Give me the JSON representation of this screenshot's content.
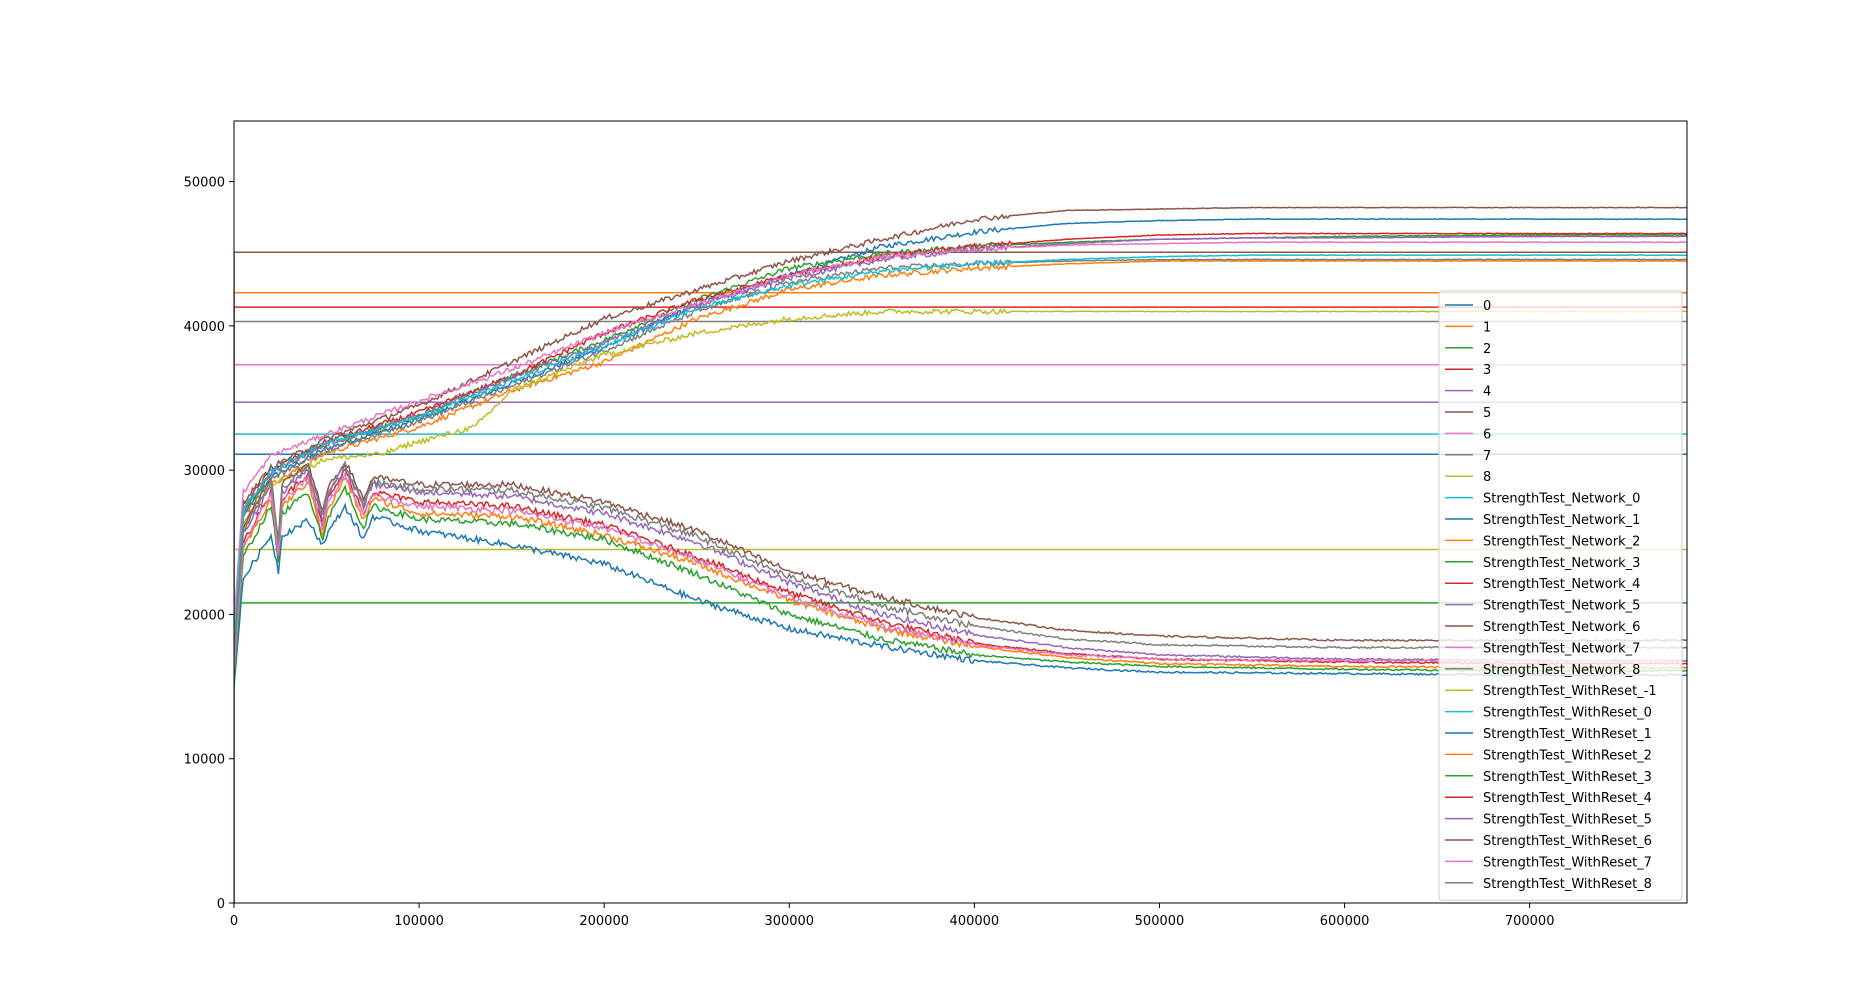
{
  "chart_data": {
    "type": "line",
    "title": "",
    "xlabel": "",
    "ylabel": "",
    "xlim": [
      0,
      785000
    ],
    "ylim": [
      0,
      54200
    ],
    "grid": false,
    "legend_position": "right",
    "x_ticks": [
      0,
      100000,
      200000,
      300000,
      400000,
      500000,
      600000,
      700000
    ],
    "x_tick_labels": [
      "0",
      "100000",
      "200000",
      "300000",
      "400000",
      "500000",
      "600000",
      "700000"
    ],
    "y_ticks": [
      0,
      10000,
      20000,
      30000,
      40000,
      50000
    ],
    "y_tick_labels": [
      "0",
      "10000",
      "20000",
      "30000",
      "40000",
      "50000"
    ],
    "series": [
      {
        "name": "0",
        "color": "#1f77b4",
        "style": "constant",
        "value": 31100
      },
      {
        "name": "1",
        "color": "#ff7f0e",
        "style": "constant",
        "value": 42300
      },
      {
        "name": "2",
        "color": "#2ca02c",
        "style": "constant",
        "value": 20800
      },
      {
        "name": "3",
        "color": "#d62728",
        "style": "constant",
        "value": 41300
      },
      {
        "name": "4",
        "color": "#9467bd",
        "style": "constant",
        "value": 34700
      },
      {
        "name": "5",
        "color": "#8c564b",
        "style": "constant",
        "value": 45100
      },
      {
        "name": "6",
        "color": "#e377c2",
        "style": "constant",
        "value": 37300
      },
      {
        "name": "7",
        "color": "#7f7f7f",
        "style": "constant",
        "value": 40300
      },
      {
        "name": "8",
        "color": "#bcbd22",
        "style": "constant",
        "value": 24500
      },
      {
        "name": "StrengthTest_Network_0",
        "color": "#17becf",
        "style": "constant",
        "value": 32500
      },
      {
        "name": "StrengthTest_Network_1",
        "color": "#1f77b4",
        "style": "rising",
        "x": [
          0,
          5000,
          20000,
          50000,
          100000,
          150000,
          200000,
          250000,
          300000,
          350000,
          400000,
          450000,
          500000,
          550000,
          600000,
          700000,
          785000
        ],
        "y": [
          18000,
          27000,
          29500,
          31500,
          33500,
          36000,
          38500,
          41500,
          43500,
          45500,
          46500,
          47100,
          47300,
          47400,
          47400,
          47400,
          47400
        ]
      },
      {
        "name": "StrengthTest_Network_2",
        "color": "#ff7f0e",
        "style": "rising",
        "x": [
          0,
          5000,
          20000,
          50000,
          100000,
          150000,
          200000,
          250000,
          300000,
          350000,
          400000,
          450000,
          500000,
          550000,
          600000,
          700000,
          785000
        ],
        "y": [
          17000,
          26500,
          29000,
          31200,
          33000,
          35500,
          37500,
          40500,
          42500,
          43500,
          44000,
          44300,
          44500,
          44500,
          44500,
          44500,
          44500
        ]
      },
      {
        "name": "StrengthTest_Network_3",
        "color": "#2ca02c",
        "style": "rising",
        "x": [
          0,
          5000,
          20000,
          50000,
          100000,
          150000,
          200000,
          250000,
          300000,
          350000,
          400000,
          450000,
          500000,
          550000,
          600000,
          700000,
          785000
        ],
        "y": [
          17500,
          27000,
          29800,
          31800,
          33800,
          36500,
          39000,
          41800,
          44000,
          45000,
          45500,
          45800,
          46000,
          46100,
          46200,
          46300,
          46300
        ]
      },
      {
        "name": "StrengthTest_Network_4",
        "color": "#d62728",
        "style": "rising",
        "x": [
          0,
          5000,
          20000,
          50000,
          100000,
          150000,
          200000,
          250000,
          300000,
          350000,
          400000,
          450000,
          500000,
          550000,
          600000,
          700000,
          785000
        ],
        "y": [
          18500,
          27500,
          30000,
          32000,
          34000,
          36500,
          39500,
          41800,
          43500,
          44800,
          45500,
          46000,
          46300,
          46400,
          46400,
          46400,
          46400
        ]
      },
      {
        "name": "StrengthTest_Network_5",
        "color": "#9467bd",
        "style": "rising",
        "x": [
          0,
          5000,
          20000,
          50000,
          100000,
          150000,
          200000,
          250000,
          300000,
          350000,
          400000,
          450000,
          500000,
          550000,
          600000,
          700000,
          785000
        ],
        "y": [
          18000,
          27200,
          29800,
          31800,
          33800,
          36400,
          38800,
          41400,
          43300,
          44600,
          45300,
          45700,
          46000,
          46100,
          46100,
          46200,
          46200
        ]
      },
      {
        "name": "StrengthTest_Network_6",
        "color": "#8c564b",
        "style": "rising",
        "x": [
          0,
          5000,
          20000,
          50000,
          100000,
          150000,
          200000,
          250000,
          300000,
          350000,
          400000,
          450000,
          500000,
          550000,
          600000,
          700000,
          785000
        ],
        "y": [
          19000,
          27800,
          30200,
          32200,
          34500,
          37500,
          40500,
          42500,
          44500,
          46000,
          47400,
          48000,
          48100,
          48200,
          48200,
          48200,
          48200
        ]
      },
      {
        "name": "StrengthTest_Network_7",
        "color": "#e377c2",
        "style": "rising",
        "x": [
          0,
          5000,
          20000,
          50000,
          100000,
          150000,
          200000,
          250000,
          300000,
          350000,
          400000,
          450000,
          500000,
          550000,
          600000,
          700000,
          785000
        ],
        "y": [
          19500,
          28500,
          31000,
          32500,
          34800,
          37000,
          39500,
          41500,
          43500,
          44800,
          45300,
          45600,
          45700,
          45800,
          45800,
          45800,
          45800
        ]
      },
      {
        "name": "StrengthTest_Network_8",
        "color": "#7f7f7f",
        "style": "rising",
        "x": [
          0,
          5000,
          20000,
          50000,
          100000,
          150000,
          200000,
          250000,
          300000,
          350000,
          400000,
          450000,
          500000,
          550000,
          600000,
          700000,
          785000
        ],
        "y": [
          17800,
          26800,
          29400,
          31400,
          33400,
          35800,
          38300,
          41000,
          43000,
          44000,
          44300,
          44500,
          44600,
          44600,
          44600,
          44600,
          44600
        ]
      },
      {
        "name": "StrengthTest_WithReset_-1",
        "color": "#bcbd22",
        "style": "rising",
        "x": [
          0,
          5000,
          20000,
          50000,
          80000,
          95000,
          130000,
          150000,
          200000,
          250000,
          300000,
          350000,
          400000,
          450000,
          500000,
          600000,
          785000
        ],
        "y": [
          16000,
          26000,
          29000,
          30800,
          31100,
          31800,
          33000,
          35500,
          38000,
          39500,
          40500,
          41000,
          41000,
          41000,
          41000,
          41000,
          41000
        ]
      },
      {
        "name": "StrengthTest_WithReset_0",
        "color": "#17becf",
        "style": "rising",
        "x": [
          0,
          5000,
          20000,
          50000,
          100000,
          150000,
          200000,
          250000,
          300000,
          350000,
          400000,
          450000,
          500000,
          550000,
          600000,
          700000,
          785000
        ],
        "y": [
          18200,
          27300,
          29900,
          31900,
          33700,
          36200,
          38600,
          41200,
          42800,
          43800,
          44300,
          44600,
          44800,
          44900,
          44900,
          44900,
          44900
        ]
      },
      {
        "name": "StrengthTest_WithReset_1",
        "color": "#1f77b4",
        "style": "falling",
        "x": [
          0,
          5000,
          20000,
          24000,
          26000,
          40000,
          48000,
          50000,
          60000,
          70000,
          75000,
          100000,
          150000,
          200000,
          250000,
          300000,
          350000,
          400000,
          450000,
          500000,
          600000,
          700000,
          785000
        ],
        "y": [
          15000,
          22500,
          25500,
          23000,
          25500,
          26500,
          24800,
          25500,
          27500,
          25200,
          26800,
          25800,
          24800,
          23500,
          21000,
          19000,
          17800,
          16800,
          16300,
          16000,
          15900,
          15800,
          15800
        ]
      },
      {
        "name": "StrengthTest_WithReset_2",
        "color": "#ff7f0e",
        "style": "falling",
        "x": [
          0,
          5000,
          20000,
          24000,
          26000,
          40000,
          48000,
          50000,
          60000,
          70000,
          75000,
          100000,
          150000,
          200000,
          250000,
          300000,
          350000,
          400000,
          450000,
          500000,
          600000,
          700000,
          785000
        ],
        "y": [
          16000,
          24500,
          28000,
          24000,
          27500,
          29200,
          25500,
          27000,
          29500,
          26500,
          28000,
          27000,
          26800,
          25500,
          23500,
          21000,
          19000,
          17800,
          17000,
          16600,
          16400,
          16300,
          16300
        ]
      },
      {
        "name": "StrengthTest_WithReset_3",
        "color": "#2ca02c",
        "style": "falling",
        "x": [
          0,
          5000,
          20000,
          24000,
          26000,
          40000,
          48000,
          50000,
          60000,
          70000,
          75000,
          100000,
          150000,
          200000,
          250000,
          300000,
          350000,
          400000,
          450000,
          500000,
          600000,
          700000,
          785000
        ],
        "y": [
          15500,
          24000,
          27500,
          23800,
          27000,
          28500,
          25200,
          26500,
          28800,
          26000,
          27500,
          26600,
          26300,
          25200,
          22800,
          20000,
          18300,
          17200,
          16700,
          16400,
          16200,
          16100,
          16100
        ]
      },
      {
        "name": "StrengthTest_WithReset_4",
        "color": "#d62728",
        "style": "falling",
        "x": [
          0,
          5000,
          20000,
          24000,
          26000,
          40000,
          48000,
          50000,
          60000,
          70000,
          75000,
          100000,
          150000,
          200000,
          250000,
          300000,
          350000,
          400000,
          450000,
          500000,
          600000,
          700000,
          785000
        ],
        "y": [
          16500,
          25000,
          28500,
          24200,
          28000,
          29800,
          26000,
          27800,
          30000,
          27000,
          28500,
          27800,
          27500,
          26200,
          24000,
          21500,
          19500,
          18000,
          17300,
          16900,
          16700,
          16600,
          16600
        ]
      },
      {
        "name": "StrengthTest_WithReset_5",
        "color": "#9467bd",
        "style": "falling",
        "x": [
          0,
          5000,
          20000,
          24000,
          26000,
          40000,
          48000,
          50000,
          60000,
          70000,
          75000,
          100000,
          150000,
          200000,
          250000,
          300000,
          350000,
          400000,
          450000,
          500000,
          600000,
          700000,
          785000
        ],
        "y": [
          16800,
          25500,
          29000,
          24500,
          28500,
          30000,
          26500,
          28000,
          30200,
          27500,
          29000,
          28500,
          28200,
          27000,
          25000,
          22200,
          20000,
          18600,
          17700,
          17200,
          16900,
          16800,
          16800
        ]
      },
      {
        "name": "StrengthTest_WithReset_6",
        "color": "#8c564b",
        "style": "falling",
        "x": [
          0,
          5000,
          20000,
          24000,
          26000,
          40000,
          48000,
          50000,
          60000,
          70000,
          75000,
          100000,
          150000,
          200000,
          250000,
          300000,
          350000,
          400000,
          450000,
          500000,
          600000,
          700000,
          785000
        ],
        "y": [
          17200,
          26000,
          29500,
          25000,
          29000,
          30500,
          27000,
          28500,
          30600,
          28000,
          29500,
          29000,
          29000,
          27800,
          25800,
          23000,
          21200,
          19800,
          18900,
          18500,
          18200,
          18200,
          18200
        ]
      },
      {
        "name": "StrengthTest_WithReset_7",
        "color": "#e377c2",
        "style": "falling",
        "x": [
          0,
          5000,
          20000,
          24000,
          26000,
          40000,
          48000,
          50000,
          60000,
          70000,
          75000,
          100000,
          150000,
          200000,
          250000,
          300000,
          350000,
          400000,
          450000,
          500000,
          600000,
          700000,
          785000
        ],
        "y": [
          16200,
          24800,
          28400,
          24100,
          27800,
          29500,
          25800,
          27500,
          29700,
          26800,
          28300,
          27500,
          27200,
          26000,
          23800,
          21200,
          19200,
          17900,
          17200,
          16900,
          16800,
          16800,
          16800
        ]
      },
      {
        "name": "StrengthTest_WithReset_8",
        "color": "#7f7f7f",
        "style": "falling",
        "x": [
          0,
          5000,
          20000,
          24000,
          26000,
          40000,
          48000,
          50000,
          60000,
          70000,
          75000,
          100000,
          150000,
          200000,
          250000,
          300000,
          350000,
          400000,
          450000,
          500000,
          600000,
          700000,
          785000
        ],
        "y": [
          17000,
          25800,
          29300,
          24800,
          28800,
          30200,
          26800,
          28200,
          30400,
          27700,
          29200,
          28700,
          28600,
          27400,
          25400,
          22600,
          20600,
          19200,
          18300,
          17900,
          17700,
          17700,
          17700
        ]
      }
    ]
  }
}
